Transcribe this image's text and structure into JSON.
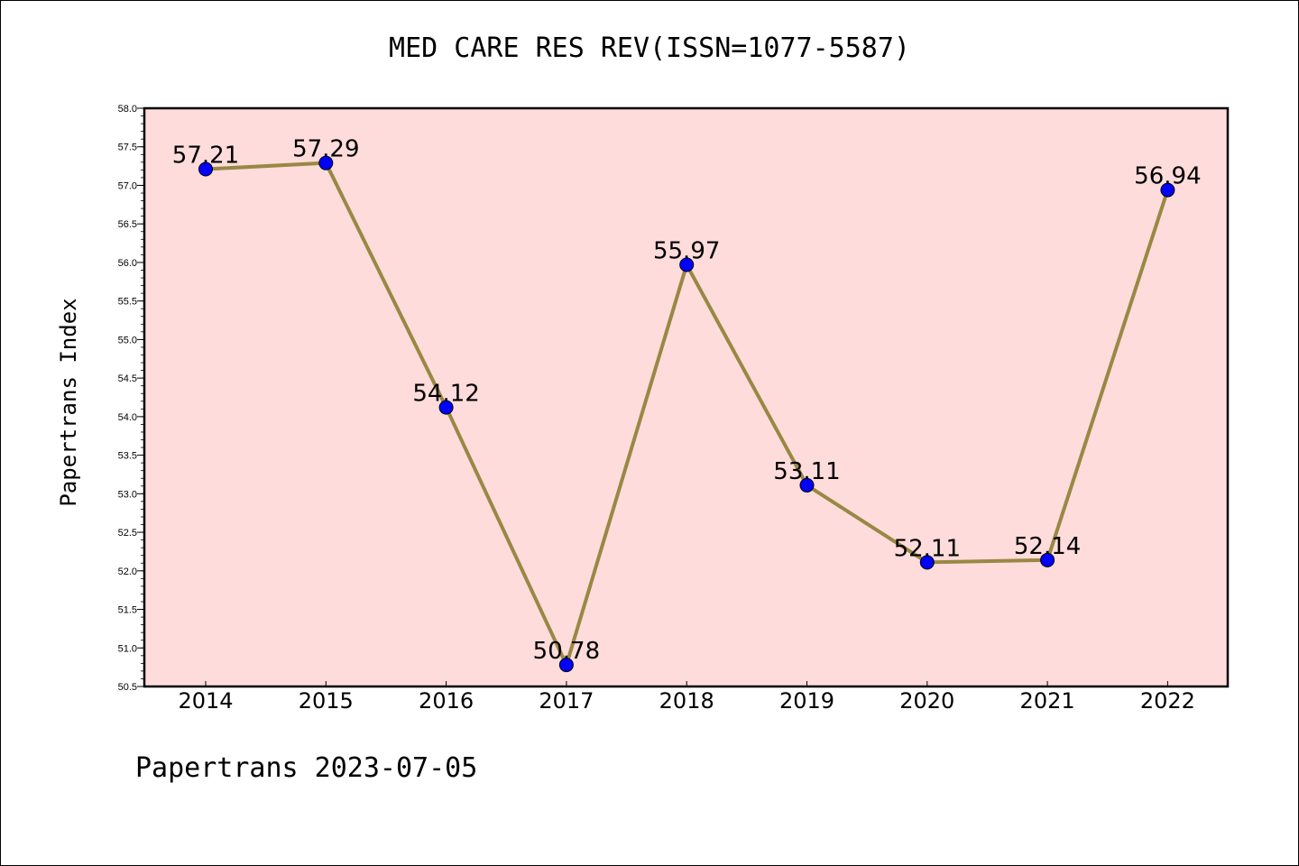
{
  "chart_data": {
    "type": "line",
    "title": "MED CARE RES REV(ISSN=1077-5587)",
    "xlabel": "",
    "ylabel": "Papertrans Index",
    "categories": [
      "2014",
      "2015",
      "2016",
      "2017",
      "2018",
      "2019",
      "2020",
      "2021",
      "2022"
    ],
    "series": [
      {
        "values": [
          57.21,
          57.29,
          54.12,
          50.78,
          55.97,
          53.11,
          52.11,
          52.14,
          56.94
        ],
        "data_labels": [
          "57.21",
          "57.29",
          "54.12",
          "50.78",
          "55.97",
          "53.11",
          "52.11",
          "52.14",
          "56.94"
        ]
      }
    ],
    "ylim": [
      50.5,
      58.0
    ],
    "yticks": [
      "50.5",
      "51.0",
      "51.5",
      "52.0",
      "52.5",
      "53.0",
      "53.5",
      "54.0",
      "54.5",
      "55.0",
      "55.5",
      "56.0",
      "56.5",
      "57.0",
      "57.5",
      "58.0"
    ],
    "grid": false,
    "colors": {
      "plot_background": "#fddcdb",
      "line": "#998844",
      "marker": "#0000ff"
    }
  },
  "footer": "Papertrans 2023-07-05"
}
